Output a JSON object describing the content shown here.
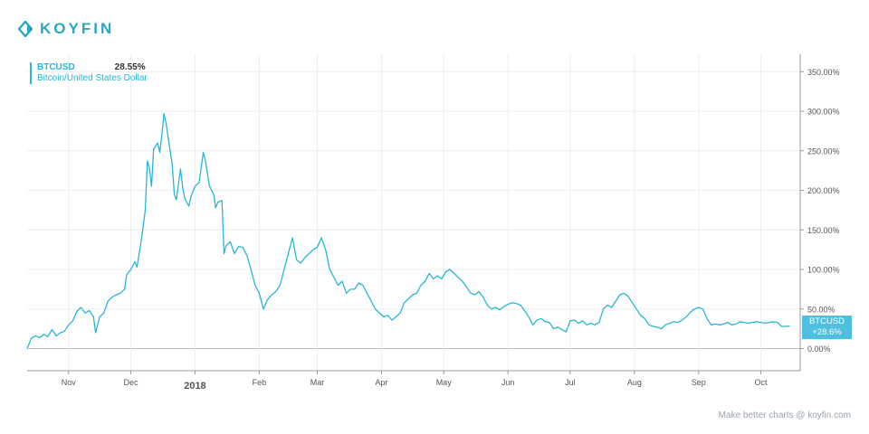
{
  "brand": {
    "name": "KOYFIN",
    "color": "#2aa6c4"
  },
  "legend": {
    "symbol": "BTCUSD",
    "value": "28.55%",
    "description": "Bitcoin/United States Dollar"
  },
  "badge": {
    "symbol": "BTCUSD",
    "value": "+28.6%",
    "color": "#4fbfdf"
  },
  "footer": {
    "text": "Make better charts @ koyfin.com"
  },
  "chart_data": {
    "type": "line",
    "series": [
      {
        "name": "BTCUSD",
        "color": "#29b6d6"
      }
    ],
    "y_ticks": [
      {
        "value": 0,
        "label": "0.00%"
      },
      {
        "value": 50,
        "label": "50.00%"
      },
      {
        "value": 100,
        "label": "100.00%"
      },
      {
        "value": 150,
        "label": "150.00%"
      },
      {
        "value": 200,
        "label": "200.00%"
      },
      {
        "value": 250,
        "label": "250.00%"
      },
      {
        "value": 300,
        "label": "300.00%"
      },
      {
        "value": 350,
        "label": "350.00%"
      }
    ],
    "ylim": [
      -28,
      372
    ],
    "y_unit": "%",
    "x_start": "2017-10-12",
    "x_end": "2018-10-20",
    "x_ticks": [
      {
        "date": "2017-11-01",
        "label": "Nov",
        "bold": false
      },
      {
        "date": "2017-12-01",
        "label": "Dec",
        "bold": false
      },
      {
        "date": "2018-01-01",
        "label": "2018",
        "bold": true
      },
      {
        "date": "2018-02-01",
        "label": "Feb",
        "bold": false
      },
      {
        "date": "2018-03-01",
        "label": "Mar",
        "bold": false
      },
      {
        "date": "2018-04-01",
        "label": "Apr",
        "bold": false
      },
      {
        "date": "2018-05-01",
        "label": "May",
        "bold": false
      },
      {
        "date": "2018-06-01",
        "label": "Jun",
        "bold": false
      },
      {
        "date": "2018-07-01",
        "label": "Jul",
        "bold": false
      },
      {
        "date": "2018-08-01",
        "label": "Aug",
        "bold": false
      },
      {
        "date": "2018-09-01",
        "label": "Sep",
        "bold": false
      },
      {
        "date": "2018-10-01",
        "label": "Oct",
        "bold": false
      }
    ],
    "points": [
      [
        "2017-10-12",
        0
      ],
      [
        "2017-10-14",
        13
      ],
      [
        "2017-10-16",
        16
      ],
      [
        "2017-10-18",
        14
      ],
      [
        "2017-10-20",
        18
      ],
      [
        "2017-10-22",
        15
      ],
      [
        "2017-10-24",
        24
      ],
      [
        "2017-10-26",
        16
      ],
      [
        "2017-10-28",
        20
      ],
      [
        "2017-10-30",
        22
      ],
      [
        "2017-11-01",
        30
      ],
      [
        "2017-11-03",
        35
      ],
      [
        "2017-11-05",
        47
      ],
      [
        "2017-11-07",
        52
      ],
      [
        "2017-11-09",
        45
      ],
      [
        "2017-11-11",
        48
      ],
      [
        "2017-11-13",
        40
      ],
      [
        "2017-11-14",
        20
      ],
      [
        "2017-11-16",
        40
      ],
      [
        "2017-11-18",
        45
      ],
      [
        "2017-11-20",
        60
      ],
      [
        "2017-11-22",
        65
      ],
      [
        "2017-11-24",
        68
      ],
      [
        "2017-11-26",
        70
      ],
      [
        "2017-11-28",
        75
      ],
      [
        "2017-11-29",
        93
      ],
      [
        "2017-12-01",
        100
      ],
      [
        "2017-12-03",
        110
      ],
      [
        "2017-12-04",
        103
      ],
      [
        "2017-12-06",
        135
      ],
      [
        "2017-12-08",
        175
      ],
      [
        "2017-12-09",
        237
      ],
      [
        "2017-12-10",
        228
      ],
      [
        "2017-12-11",
        205
      ],
      [
        "2017-12-12",
        252
      ],
      [
        "2017-12-14",
        260
      ],
      [
        "2017-12-15",
        248
      ],
      [
        "2017-12-16",
        270
      ],
      [
        "2017-12-17",
        297
      ],
      [
        "2017-12-18",
        285
      ],
      [
        "2017-12-20",
        250
      ],
      [
        "2017-12-21",
        232
      ],
      [
        "2017-12-22",
        195
      ],
      [
        "2017-12-23",
        188
      ],
      [
        "2017-12-25",
        227
      ],
      [
        "2017-12-26",
        205
      ],
      [
        "2017-12-27",
        190
      ],
      [
        "2017-12-29",
        180
      ],
      [
        "2017-12-30",
        192
      ],
      [
        "2018-01-01",
        205
      ],
      [
        "2018-01-03",
        210
      ],
      [
        "2018-01-05",
        248
      ],
      [
        "2018-01-06",
        237
      ],
      [
        "2018-01-08",
        205
      ],
      [
        "2018-01-10",
        195
      ],
      [
        "2018-01-11",
        178
      ],
      [
        "2018-01-12",
        185
      ],
      [
        "2018-01-14",
        187
      ],
      [
        "2018-01-15",
        120
      ],
      [
        "2018-01-16",
        130
      ],
      [
        "2018-01-18",
        135
      ],
      [
        "2018-01-20",
        120
      ],
      [
        "2018-01-22",
        129
      ],
      [
        "2018-01-24",
        128
      ],
      [
        "2018-01-26",
        118
      ],
      [
        "2018-01-28",
        100
      ],
      [
        "2018-01-30",
        80
      ],
      [
        "2018-02-01",
        70
      ],
      [
        "2018-02-03",
        50
      ],
      [
        "2018-02-05",
        62
      ],
      [
        "2018-02-07",
        68
      ],
      [
        "2018-02-09",
        72
      ],
      [
        "2018-02-11",
        80
      ],
      [
        "2018-02-13",
        100
      ],
      [
        "2018-02-15",
        120
      ],
      [
        "2018-02-17",
        140
      ],
      [
        "2018-02-19",
        112
      ],
      [
        "2018-02-21",
        108
      ],
      [
        "2018-02-23",
        115
      ],
      [
        "2018-02-25",
        120
      ],
      [
        "2018-02-27",
        125
      ],
      [
        "2018-03-01",
        128
      ],
      [
        "2018-03-03",
        140
      ],
      [
        "2018-03-05",
        125
      ],
      [
        "2018-03-07",
        100
      ],
      [
        "2018-03-09",
        90
      ],
      [
        "2018-03-11",
        80
      ],
      [
        "2018-03-13",
        85
      ],
      [
        "2018-03-15",
        70
      ],
      [
        "2018-03-17",
        75
      ],
      [
        "2018-03-19",
        75
      ],
      [
        "2018-03-21",
        83
      ],
      [
        "2018-03-23",
        80
      ],
      [
        "2018-03-25",
        70
      ],
      [
        "2018-03-27",
        60
      ],
      [
        "2018-03-29",
        50
      ],
      [
        "2018-03-31",
        45
      ],
      [
        "2018-04-02",
        40
      ],
      [
        "2018-04-04",
        42
      ],
      [
        "2018-04-06",
        36
      ],
      [
        "2018-04-08",
        40
      ],
      [
        "2018-04-10",
        45
      ],
      [
        "2018-04-12",
        58
      ],
      [
        "2018-04-14",
        63
      ],
      [
        "2018-04-16",
        68
      ],
      [
        "2018-04-18",
        70
      ],
      [
        "2018-04-20",
        80
      ],
      [
        "2018-04-22",
        85
      ],
      [
        "2018-04-24",
        95
      ],
      [
        "2018-04-26",
        88
      ],
      [
        "2018-04-28",
        92
      ],
      [
        "2018-04-30",
        88
      ],
      [
        "2018-05-02",
        97
      ],
      [
        "2018-05-04",
        100
      ],
      [
        "2018-05-06",
        95
      ],
      [
        "2018-05-08",
        90
      ],
      [
        "2018-05-10",
        85
      ],
      [
        "2018-05-12",
        78
      ],
      [
        "2018-05-14",
        70
      ],
      [
        "2018-05-16",
        68
      ],
      [
        "2018-05-18",
        72
      ],
      [
        "2018-05-20",
        65
      ],
      [
        "2018-05-22",
        55
      ],
      [
        "2018-05-24",
        50
      ],
      [
        "2018-05-26",
        52
      ],
      [
        "2018-05-28",
        49
      ],
      [
        "2018-05-30",
        53
      ],
      [
        "2018-06-01",
        56
      ],
      [
        "2018-06-03",
        58
      ],
      [
        "2018-06-05",
        57
      ],
      [
        "2018-06-07",
        55
      ],
      [
        "2018-06-09",
        48
      ],
      [
        "2018-06-11",
        40
      ],
      [
        "2018-06-13",
        30
      ],
      [
        "2018-06-15",
        36
      ],
      [
        "2018-06-17",
        38
      ],
      [
        "2018-06-19",
        34
      ],
      [
        "2018-06-21",
        33
      ],
      [
        "2018-06-23",
        25
      ],
      [
        "2018-06-25",
        27
      ],
      [
        "2018-06-27",
        24
      ],
      [
        "2018-06-29",
        21
      ],
      [
        "2018-07-01",
        35
      ],
      [
        "2018-07-03",
        36
      ],
      [
        "2018-07-05",
        32
      ],
      [
        "2018-07-07",
        35
      ],
      [
        "2018-07-09",
        30
      ],
      [
        "2018-07-11",
        32
      ],
      [
        "2018-07-13",
        30
      ],
      [
        "2018-07-15",
        33
      ],
      [
        "2018-07-17",
        50
      ],
      [
        "2018-07-19",
        55
      ],
      [
        "2018-07-21",
        52
      ],
      [
        "2018-07-23",
        60
      ],
      [
        "2018-07-25",
        68
      ],
      [
        "2018-07-27",
        70
      ],
      [
        "2018-07-29",
        66
      ],
      [
        "2018-07-31",
        58
      ],
      [
        "2018-08-02",
        50
      ],
      [
        "2018-08-04",
        42
      ],
      [
        "2018-08-06",
        38
      ],
      [
        "2018-08-08",
        30
      ],
      [
        "2018-08-10",
        28
      ],
      [
        "2018-08-12",
        27
      ],
      [
        "2018-08-14",
        25
      ],
      [
        "2018-08-16",
        30
      ],
      [
        "2018-08-18",
        32
      ],
      [
        "2018-08-20",
        34
      ],
      [
        "2018-08-22",
        33
      ],
      [
        "2018-08-24",
        36
      ],
      [
        "2018-08-26",
        40
      ],
      [
        "2018-08-28",
        46
      ],
      [
        "2018-08-30",
        50
      ],
      [
        "2018-09-01",
        52
      ],
      [
        "2018-09-03",
        50
      ],
      [
        "2018-09-05",
        38
      ],
      [
        "2018-09-07",
        30
      ],
      [
        "2018-09-09",
        31
      ],
      [
        "2018-09-11",
        30
      ],
      [
        "2018-09-13",
        31
      ],
      [
        "2018-09-15",
        33
      ],
      [
        "2018-09-17",
        30
      ],
      [
        "2018-09-19",
        31
      ],
      [
        "2018-09-21",
        34
      ],
      [
        "2018-09-23",
        33
      ],
      [
        "2018-09-25",
        32
      ],
      [
        "2018-09-27",
        33
      ],
      [
        "2018-09-29",
        34
      ],
      [
        "2018-10-01",
        33
      ],
      [
        "2018-10-03",
        32
      ],
      [
        "2018-10-05",
        33
      ],
      [
        "2018-10-07",
        34
      ],
      [
        "2018-10-09",
        33
      ],
      [
        "2018-10-11",
        28
      ],
      [
        "2018-10-13",
        28
      ],
      [
        "2018-10-15",
        28.55
      ]
    ],
    "grid": true
  }
}
